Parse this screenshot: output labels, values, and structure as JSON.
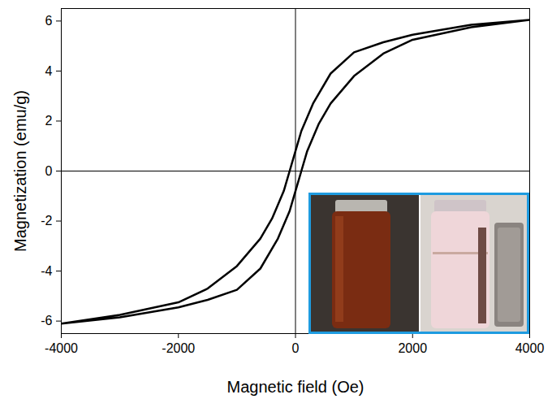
{
  "chart_data": {
    "type": "line",
    "x_label": "Magnetic field (Oe)",
    "y_label": "Magnetization (emu/g)",
    "x": [
      4000,
      3000,
      2000,
      1500,
      1000,
      600,
      300,
      100,
      0,
      -100,
      -200,
      -400,
      -600,
      -1000,
      -1500,
      -2000,
      -3000,
      -4000,
      -4000,
      -3000,
      -2000,
      -1500,
      -1000,
      -600,
      -300,
      -100,
      0,
      100,
      200,
      400,
      600,
      1000,
      1500,
      2000,
      3000,
      4000
    ],
    "values": [
      6.05,
      5.85,
      5.45,
      5.15,
      4.75,
      3.9,
      2.7,
      1.6,
      0.8,
      0,
      -0.8,
      -1.9,
      -2.7,
      -3.8,
      -4.7,
      -5.25,
      -5.75,
      -6.1,
      -6.1,
      -5.85,
      -5.45,
      -5.15,
      -4.75,
      -3.9,
      -2.7,
      -1.6,
      -0.8,
      0,
      0.8,
      1.9,
      2.7,
      3.8,
      4.7,
      5.25,
      5.75,
      6.05
    ],
    "color": "#000000",
    "xlim": [
      -4000,
      4000
    ],
    "xticks": [
      -4000,
      -2000,
      0,
      2000,
      4000
    ],
    "ylim": [
      -6.5,
      6.5
    ],
    "yticks": [
      -6,
      -4,
      -2,
      0,
      2,
      4,
      6
    ],
    "grid": false
  }
}
